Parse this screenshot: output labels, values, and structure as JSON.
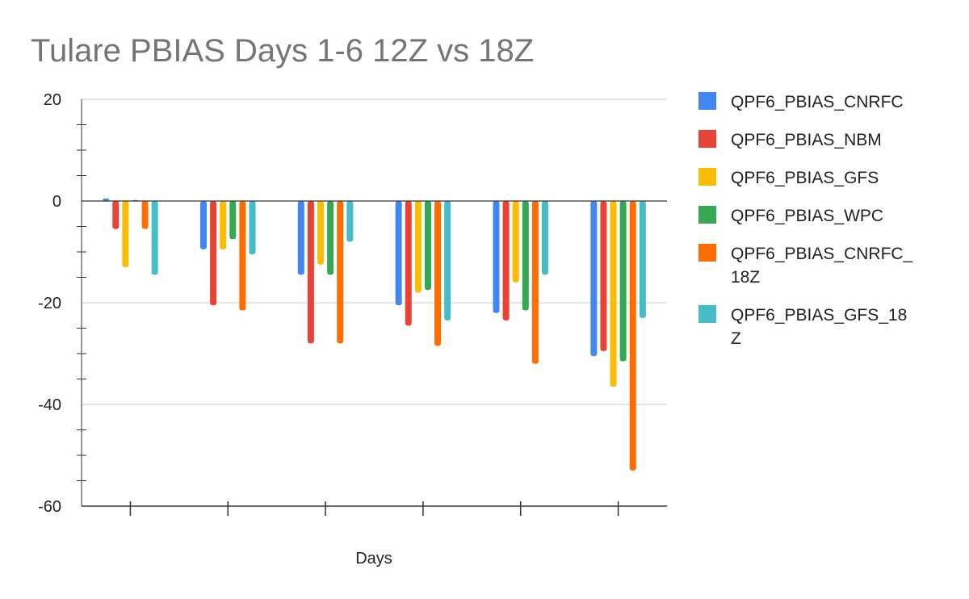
{
  "chart_data": {
    "type": "bar",
    "title": "Tulare PBIAS Days 1-6 12Z vs 18Z",
    "xlabel": "Days",
    "ylabel": "",
    "ylim": [
      -60,
      20
    ],
    "yticks": [
      20,
      0,
      -20,
      -40,
      -60
    ],
    "categories": [
      "",
      "",
      "",
      "",
      "",
      ""
    ],
    "grid": true,
    "legend_position": "right",
    "series": [
      {
        "name": "QPF6_PBIAS_CNRFC",
        "legend_lines": [
          "QPF6_PBIAS_CNRFC"
        ],
        "color": "#4285f4",
        "values": [
          0.5,
          -9.5,
          -14.5,
          -20.5,
          -22,
          -30.5
        ]
      },
      {
        "name": "QPF6_PBIAS_NBM",
        "legend_lines": [
          "QPF6_PBIAS_NBM"
        ],
        "color": "#ea4335",
        "values": [
          -5.5,
          -20.5,
          -28,
          -24.5,
          -23.5,
          -29.5
        ]
      },
      {
        "name": "QPF6_PBIAS_GFS",
        "legend_lines": [
          "QPF6_PBIAS_GFS"
        ],
        "color": "#fbbc04",
        "values": [
          -13,
          -9.5,
          -12.5,
          -18,
          -16,
          -36.5
        ]
      },
      {
        "name": "QPF6_PBIAS_WPC",
        "legend_lines": [
          "QPF6_PBIAS_WPC"
        ],
        "color": "#34a853",
        "values": [
          0.2,
          -7.5,
          -14.5,
          -17.5,
          -21.5,
          -31.5
        ]
      },
      {
        "name": "QPF6_PBIAS_CNRFC_18Z",
        "legend_lines": [
          "QPF6_PBIAS_CNRFC_",
          "18Z"
        ],
        "color": "#ff6d01",
        "values": [
          -5.5,
          -21.5,
          -28,
          -28.5,
          -32,
          -53
        ]
      },
      {
        "name": "QPF6_PBIAS_GFS_18Z",
        "legend_lines": [
          "QPF6_PBIAS_GFS_18",
          "Z"
        ],
        "color": "#46bdc6",
        "values": [
          -14.5,
          -10.5,
          -8,
          -23.5,
          -14.5,
          -23
        ]
      }
    ]
  }
}
